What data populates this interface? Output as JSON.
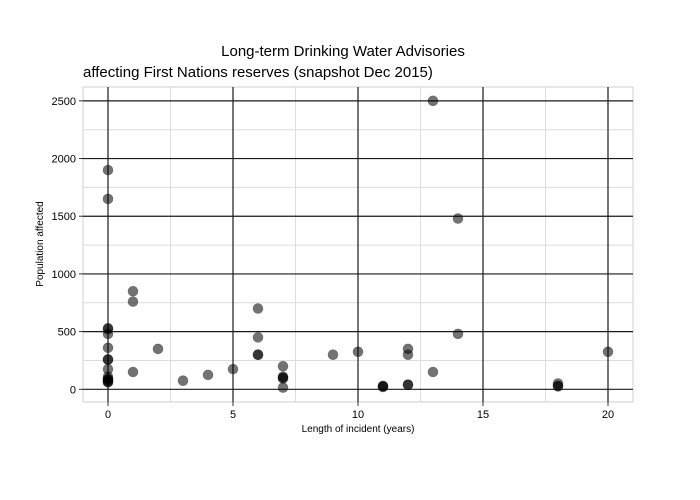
{
  "chart_data": {
    "type": "scatter",
    "title": "Long-term Drinking Water Advisories",
    "subtitle": "affecting First Nations reserves (snapshot Dec 2015)",
    "xlabel": "Length of incident (years)",
    "ylabel": "Population affected",
    "xlim": [
      -1,
      21
    ],
    "ylim": [
      -110,
      2620
    ],
    "x_ticks": [
      0,
      5,
      10,
      15,
      20
    ],
    "x_tick_labels": [
      "0",
      "5",
      "10",
      "15",
      "20"
    ],
    "y_ticks": [
      0,
      500,
      1000,
      1500,
      2000,
      2500
    ],
    "y_tick_labels": [
      "0",
      "500",
      "1000",
      "1500",
      "2000",
      "2500"
    ],
    "grid": true,
    "point_color": "#000000",
    "point_opacity": 0.55,
    "x": [
      0,
      0,
      0,
      0,
      0,
      0,
      0,
      0,
      0,
      0,
      0,
      0,
      0,
      0,
      0,
      1,
      1,
      1,
      2,
      3,
      4,
      5,
      6,
      6,
      6,
      6,
      7,
      7,
      7,
      7,
      7,
      9,
      10,
      11,
      11,
      11,
      12,
      12,
      12,
      12,
      13,
      13,
      14,
      14,
      18,
      18,
      18,
      20
    ],
    "y": [
      1900,
      1650,
      530,
      520,
      480,
      360,
      260,
      255,
      175,
      110,
      90,
      85,
      75,
      65,
      60,
      850,
      760,
      150,
      350,
      75,
      125,
      175,
      700,
      450,
      300,
      300,
      200,
      110,
      100,
      95,
      15,
      300,
      325,
      30,
      25,
      20,
      350,
      300,
      40,
      40,
      2500,
      150,
      1480,
      480,
      50,
      30,
      25,
      325
    ]
  }
}
